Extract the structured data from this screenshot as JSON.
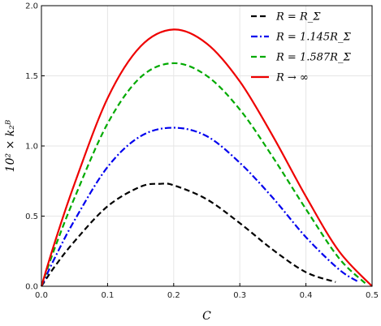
{
  "chart_data": {
    "type": "line",
    "xlabel": "C",
    "ylabel": "10² × k₂ᴮ",
    "xlim": [
      0,
      0.5
    ],
    "ylim": [
      0,
      2.0
    ],
    "xticks": [
      "0.0",
      "0.1",
      "0.2",
      "0.3",
      "0.4",
      "0.5"
    ],
    "yticks": [
      "0.0",
      "0.5",
      "1.0",
      "1.5",
      "2.0"
    ],
    "grid": true,
    "legend_position": "top-right",
    "series": [
      {
        "name": "R = R_Σ",
        "color": "#000000",
        "dash": "dashed",
        "x": [
          0.0,
          0.02,
          0.05,
          0.1,
          0.15,
          0.18,
          0.2,
          0.25,
          0.3,
          0.35,
          0.4,
          0.445
        ],
        "y": [
          0.0,
          0.14,
          0.32,
          0.57,
          0.71,
          0.73,
          0.72,
          0.62,
          0.45,
          0.26,
          0.1,
          0.03
        ]
      },
      {
        "name": "R = 1.145R_Σ",
        "color": "#0000ee",
        "dash": "dashdot",
        "x": [
          0.0,
          0.02,
          0.05,
          0.1,
          0.15,
          0.2,
          0.25,
          0.3,
          0.35,
          0.4,
          0.45,
          0.48
        ],
        "y": [
          0.0,
          0.2,
          0.47,
          0.85,
          1.07,
          1.13,
          1.07,
          0.88,
          0.63,
          0.35,
          0.12,
          0.03
        ]
      },
      {
        "name": "R = 1.587R_Σ",
        "color": "#00aa00",
        "dash": "dashed",
        "x": [
          0.0,
          0.02,
          0.05,
          0.1,
          0.15,
          0.2,
          0.25,
          0.3,
          0.35,
          0.4,
          0.45,
          0.49
        ],
        "y": [
          0.0,
          0.27,
          0.63,
          1.16,
          1.49,
          1.59,
          1.5,
          1.26,
          0.92,
          0.55,
          0.2,
          0.02
        ]
      },
      {
        "name": "R → ∞",
        "color": "#ee0000",
        "dash": "solid",
        "x": [
          0.0,
          0.02,
          0.05,
          0.1,
          0.15,
          0.2,
          0.25,
          0.3,
          0.35,
          0.4,
          0.45,
          0.5
        ],
        "y": [
          0.0,
          0.31,
          0.73,
          1.34,
          1.71,
          1.83,
          1.73,
          1.46,
          1.07,
          0.64,
          0.25,
          0.0
        ]
      }
    ]
  }
}
